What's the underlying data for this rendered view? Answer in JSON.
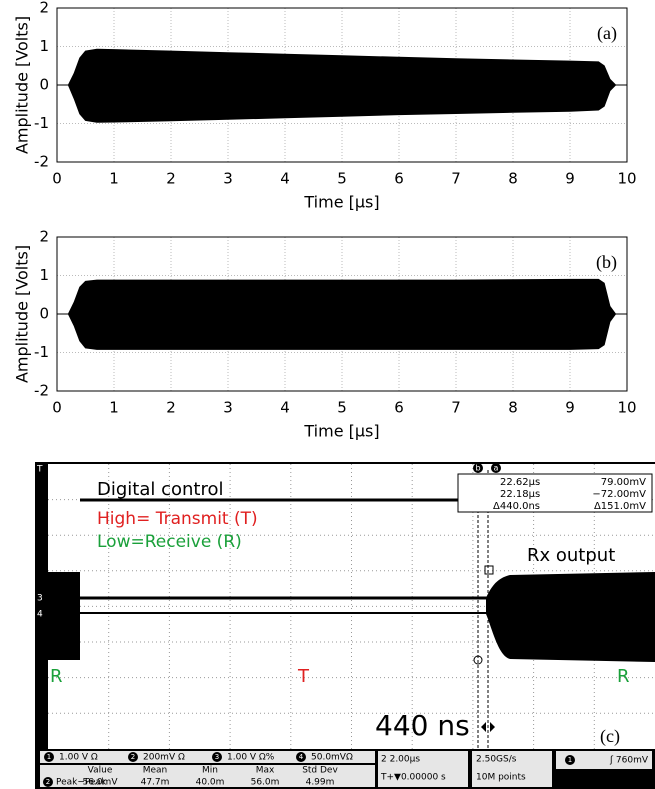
{
  "chart_data": [
    {
      "type": "envelope",
      "annotation": "(a)",
      "xlabel": "Time [μs]",
      "ylabel": "Amplitude [Volts]",
      "x": [
        0,
        0.2,
        0.3,
        0.4,
        0.5,
        0.7,
        1,
        2,
        3,
        4,
        5,
        6,
        7,
        8,
        9,
        9.5,
        9.6,
        9.7,
        9.8,
        10
      ],
      "series": [
        {
          "values": [
            0,
            0,
            0.3,
            0.7,
            0.88,
            0.93,
            0.92,
            0.88,
            0.84,
            0.8,
            0.76,
            0.72,
            0.68,
            0.65,
            0.62,
            0.6,
            0.5,
            0.15,
            0,
            0
          ]
        },
        {
          "values": [
            0,
            0,
            -0.35,
            -0.75,
            -0.92,
            -0.97,
            -0.96,
            -0.93,
            -0.89,
            -0.85,
            -0.81,
            -0.77,
            -0.74,
            -0.71,
            -0.68,
            -0.65,
            -0.55,
            -0.15,
            0,
            0
          ]
        }
      ],
      "color": "#000000",
      "xlim": [
        0,
        10
      ],
      "xticks": [
        0,
        1,
        2,
        3,
        4,
        5,
        6,
        7,
        8,
        9,
        10
      ],
      "ylim": [
        -2,
        2
      ],
      "yticks": [
        -2,
        -1,
        0,
        1,
        2
      ],
      "grid": true
    },
    {
      "type": "envelope",
      "annotation": "(b)",
      "xlabel": "Time [μs]",
      "ylabel": "Amplitude [Volts]",
      "x": [
        0,
        0.2,
        0.3,
        0.4,
        0.5,
        0.7,
        1,
        2,
        3,
        4,
        5,
        6,
        7,
        8,
        9,
        9.5,
        9.6,
        9.7,
        9.8,
        10
      ],
      "series": [
        {
          "values": [
            0,
            0,
            0.3,
            0.7,
            0.85,
            0.88,
            0.88,
            0.88,
            0.88,
            0.88,
            0.88,
            0.88,
            0.88,
            0.89,
            0.9,
            0.9,
            0.8,
            0.2,
            0,
            0
          ]
        },
        {
          "values": [
            0,
            0,
            -0.3,
            -0.7,
            -0.88,
            -0.92,
            -0.92,
            -0.92,
            -0.92,
            -0.92,
            -0.92,
            -0.92,
            -0.92,
            -0.92,
            -0.92,
            -0.9,
            -0.8,
            -0.2,
            0,
            0
          ]
        }
      ],
      "color": "#000000",
      "xlim": [
        0,
        10
      ],
      "xticks": [
        0,
        1,
        2,
        3,
        4,
        5,
        6,
        7,
        8,
        9,
        10
      ],
      "ylim": [
        -2,
        2
      ],
      "yticks": [
        -2,
        -1,
        0,
        1,
        2
      ],
      "grid": true
    }
  ],
  "scope": {
    "labels": {
      "digital": "Digital control",
      "high": "High= Transmit (T)",
      "low": "Low=Receive (R)",
      "rx": "Rx output",
      "r_left": "R",
      "t_mid": "T",
      "r_right": "R",
      "delay": "440 ns",
      "panel": "(c)"
    },
    "markers": {
      "trig": "T",
      "ch3": "3",
      "ch4": "4",
      "cur_b": "b",
      "cur_a": "a"
    },
    "cursors": {
      "a_time": "22.62μs",
      "a_volt": "79.00mV",
      "b_time": "22.18μs",
      "b_volt": "−72.00mV",
      "d_time": "Δ440.0ns",
      "d_volt": "Δ151.0mV"
    },
    "channels": [
      {
        "num": "1",
        "scale": "1.00 V Ω"
      },
      {
        "num": "2",
        "scale": "200mV Ω"
      },
      {
        "num": "3",
        "scale": "1.00 V Ω%"
      },
      {
        "num": "4",
        "scale": "50.0mVΩ"
      }
    ],
    "measure": {
      "headers": [
        "Value",
        "Mean",
        "Min",
        "Max",
        "Std Dev"
      ],
      "channel": "2",
      "name": "Peak−Peak",
      "row": [
        "56.0mV",
        "47.7m",
        "40.0m",
        "56.0m",
        "4.99m"
      ]
    },
    "timebase": {
      "scale": "2 2.00μs",
      "offset": "T+▼0.00000 s"
    },
    "sampling": {
      "rate": "2.50GS/s",
      "points": "10M points"
    },
    "trigger": {
      "channel": "1",
      "level": "ʃ 760mV"
    }
  }
}
